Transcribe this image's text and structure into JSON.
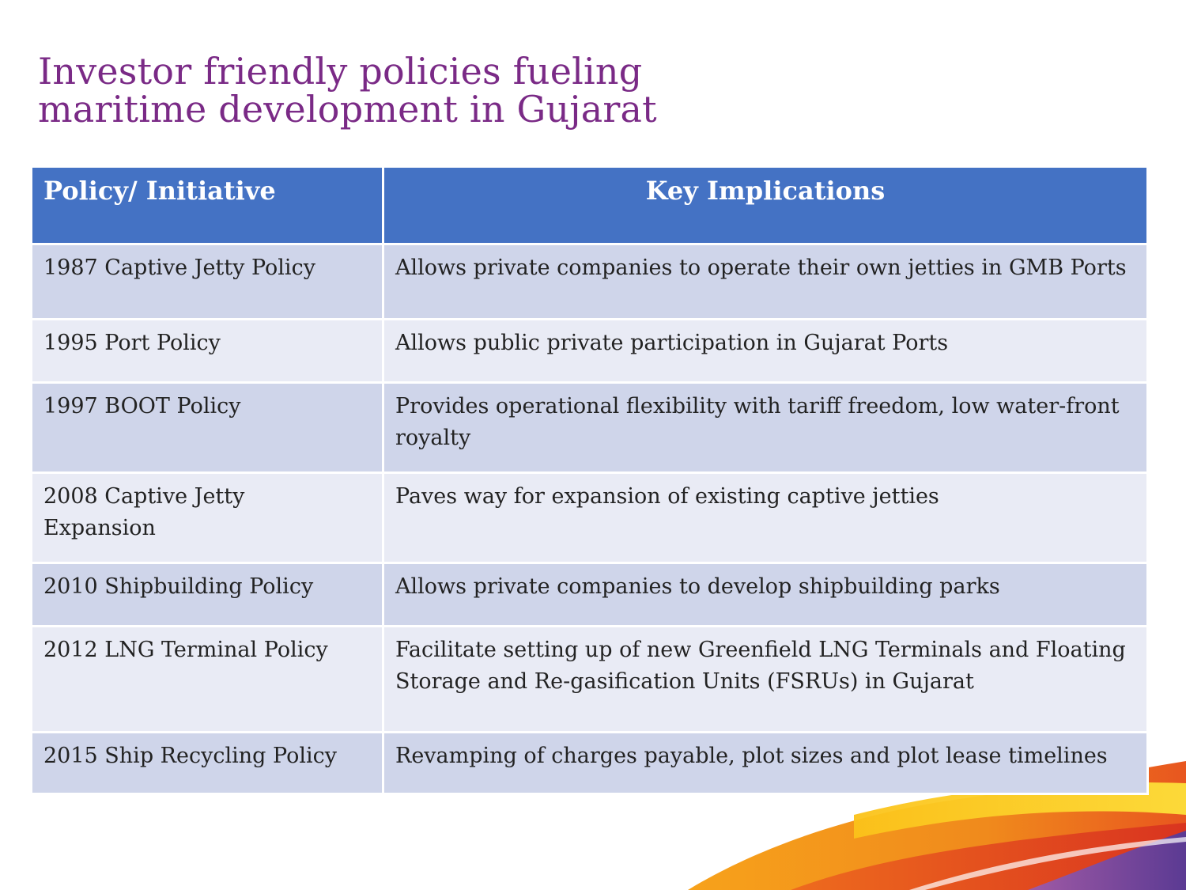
{
  "title": {
    "line1": "Investor friendly policies fueling",
    "line2": "maritime development in Gujarat"
  },
  "table": {
    "headers": [
      "Policy/ Initiative",
      "Key Implications"
    ],
    "rows": [
      {
        "policy": "1987 Captive Jetty Policy",
        "implication": "Allows private companies to operate their own jetties in GMB Ports"
      },
      {
        "policy": "1995 Port Policy",
        "implication": "Allows public private participation in Gujarat Ports"
      },
      {
        "policy": "1997 BOOT Policy",
        "implication": "Provides operational flexibility with tariff freedom, low water-front royalty"
      },
      {
        "policy": "2008 Captive Jetty Expansion",
        "implication": "Paves way for expansion of existing captive jetties"
      },
      {
        "policy": "2010 Shipbuilding Policy",
        "implication": "Allows private companies to develop shipbuilding parks"
      },
      {
        "policy": "2012 LNG Terminal Policy",
        "implication": "Facilitate setting up of new Greenfield LNG Terminals and Floating Storage and Re-gasification Units (FSRUs) in Gujarat"
      },
      {
        "policy": "2015 Ship Recycling Policy",
        "implication": "Revamping of charges payable, plot sizes and plot lease timelines"
      }
    ]
  },
  "colors": {
    "title": "#7a2a86",
    "header_bg": "#4472c4",
    "row_dark": "#cfd5ea",
    "row_light": "#e9ebf5"
  }
}
